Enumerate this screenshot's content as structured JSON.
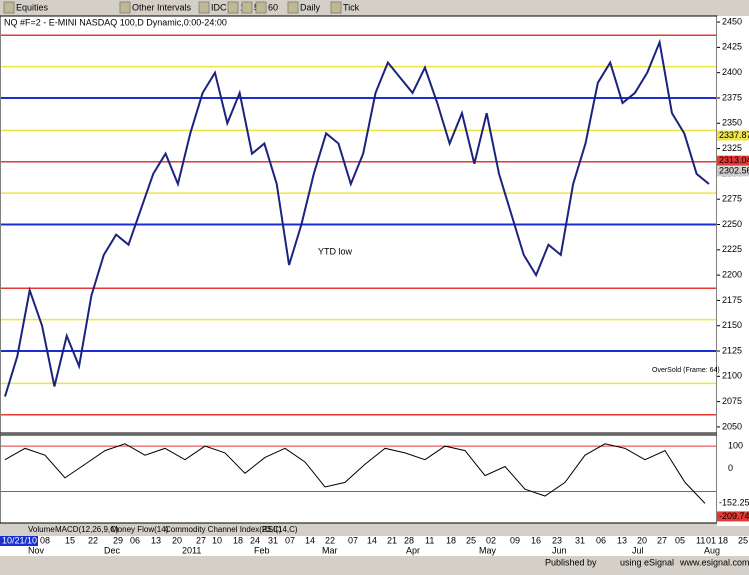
{
  "toolbar": {
    "items": [
      "Equities",
      "Other Intervals",
      "IDC",
      "1",
      "5",
      "60",
      "Daily",
      "Tick"
    ]
  },
  "chart_data": {
    "type": "line",
    "title": "NQ #F=2 - E-MINI NASDAQ 100,D  Dynamic,0:00-24:00",
    "series": [
      {
        "name": "NQ #F=2",
        "color": "#1a237e",
        "values": [
          2080,
          2120,
          2185,
          2150,
          2090,
          2140,
          2110,
          2180,
          2220,
          2240,
          2230,
          2265,
          2300,
          2320,
          2290,
          2340,
          2380,
          2400,
          2350,
          2380,
          2320,
          2330,
          2290,
          2210,
          2250,
          2300,
          2340,
          2330,
          2290,
          2320,
          2380,
          2410,
          2395,
          2380,
          2405,
          2370,
          2330,
          2360,
          2310,
          2360,
          2300,
          2260,
          2220,
          2200,
          2230,
          2220,
          2290,
          2330,
          2390,
          2410,
          2370,
          2380,
          2400,
          2430,
          2360,
          2340,
          2300,
          2290
        ]
      }
    ],
    "levels": [
      {
        "value": 2437,
        "color": "#e53935"
      },
      {
        "value": 2312,
        "color": "#e53935"
      },
      {
        "value": 2187,
        "color": "#e53935"
      },
      {
        "value": 2062,
        "color": "#e53935"
      },
      {
        "value": 2406,
        "color": "#f0e442"
      },
      {
        "value": 2343,
        "color": "#f0e442"
      },
      {
        "value": 2281,
        "color": "#f0e442"
      },
      {
        "value": 2156,
        "color": "#f0e442"
      },
      {
        "value": 2093,
        "color": "#f0e442"
      },
      {
        "value": 2375,
        "color": "#1a2fd0"
      },
      {
        "value": 2250,
        "color": "#1a2fd0"
      },
      {
        "value": 2125,
        "color": "#1a2fd0"
      }
    ],
    "ylim": [
      2045,
      2455
    ],
    "yticks": [
      2450,
      2425,
      2400,
      2375,
      2350,
      2325,
      2300,
      2275,
      2250,
      2225,
      2200,
      2175,
      2150,
      2125,
      2100,
      2075,
      2050
    ],
    "price_labels": [
      {
        "value": 2337.87,
        "label": "2337.87",
        "color": "#f0e442"
      },
      {
        "value": 2313.04,
        "label": "2313.04",
        "color": "#e53935"
      },
      {
        "value": 2302.56,
        "label": "2302.56",
        "color": "#cccccc"
      }
    ],
    "annotations": [
      "YTD low",
      "OverSold (Frame: 64)"
    ],
    "xlabels": [
      "10/21/10",
      "08",
      "15",
      "22",
      "29",
      "06",
      "13",
      "20",
      "27",
      "10",
      "18",
      "24",
      "31",
      "07",
      "14",
      "22",
      "07",
      "14",
      "21",
      "28",
      "11",
      "18",
      "25",
      "02",
      "09",
      "16",
      "23",
      "31",
      "06",
      "13",
      "20",
      "27",
      "05",
      "11",
      "18",
      "25",
      "01"
    ],
    "months": [
      "Nov",
      "Dec",
      "2011",
      "Feb",
      "Mar",
      "Apr",
      "May",
      "Jun",
      "Jul",
      "Aug"
    ]
  },
  "indicator": {
    "name": "Commodity Channel Index(23,C)",
    "color": "#000000",
    "values": [
      40,
      90,
      60,
      -40,
      20,
      80,
      110,
      60,
      90,
      40,
      100,
      70,
      -20,
      50,
      90,
      30,
      -80,
      -60,
      20,
      90,
      70,
      40,
      100,
      80,
      -30,
      10,
      -90,
      -120,
      -60,
      60,
      110,
      90,
      40,
      80,
      -60,
      -152.25
    ],
    "ylim": [
      -230,
      140
    ],
    "yticks": [
      100,
      0
    ],
    "lines": [
      100,
      -100
    ],
    "value_labels": [
      {
        "value": -152.25,
        "label": "-152.25"
      },
      {
        "value": -209.74,
        "label": "-209.74"
      }
    ]
  },
  "tabs": [
    "Volume",
    "MACD(12,26,9,C)",
    "Money Flow(14)",
    "Commodity Channel Index(23,C)",
    "RSI(14,C)"
  ],
  "footer": {
    "published": "Published by",
    "tool": "using eSignal",
    "url": "www.esignal.com"
  }
}
